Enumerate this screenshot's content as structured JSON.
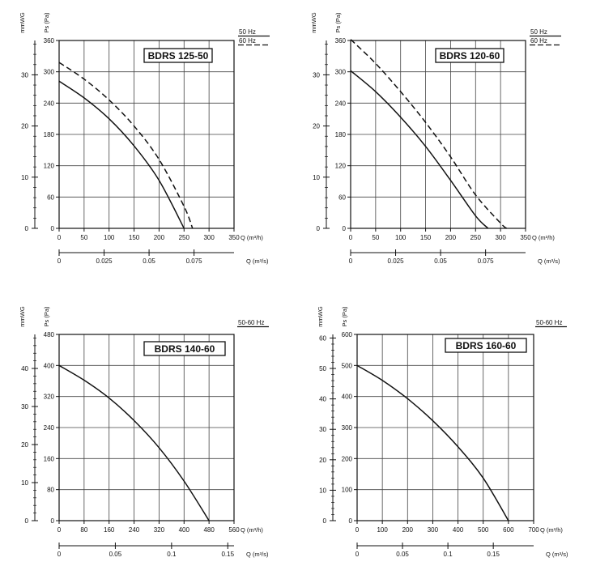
{
  "chart_data": [
    {
      "type": "line",
      "title": "BDRS 125-50",
      "xlabel": "Q (m³/h)",
      "x2label": "Q (m³/s)",
      "ylabel": "Ps (Pa)",
      "y2label": "mmWG",
      "xlim": [
        0,
        350
      ],
      "ylim": [
        0,
        360
      ],
      "x_ticks": [
        0,
        50,
        100,
        150,
        200,
        250,
        300,
        350
      ],
      "y_ticks": [
        0,
        60,
        120,
        180,
        240,
        300,
        360
      ],
      "x2_ticks": [
        0,
        0.025,
        0.05,
        0.075
      ],
      "x2_tick_labels": [
        "0",
        "0.025",
        "0.05",
        "0.075"
      ],
      "y2_ticks": [
        0,
        10,
        20,
        30
      ],
      "legend": [
        {
          "label": "50 Hz",
          "style": "solid"
        },
        {
          "label": "60 Hz",
          "style": "dashed"
        }
      ],
      "series": [
        {
          "name": "50 Hz",
          "style": "solid",
          "x": [
            0,
            50,
            100,
            150,
            200,
            250
          ],
          "y": [
            282,
            250,
            210,
            158,
            92,
            0
          ]
        },
        {
          "name": "60 Hz",
          "style": "dashed",
          "x": [
            0,
            50,
            100,
            150,
            200,
            250,
            267
          ],
          "y": [
            318,
            286,
            246,
            196,
            132,
            42,
            0
          ]
        }
      ]
    },
    {
      "type": "line",
      "title": "BDRS 120-60",
      "xlabel": "Q (m³/h)",
      "x2label": "Q (m³/s)",
      "ylabel": "Ps (Pa)",
      "y2label": "mmWG",
      "xlim": [
        0,
        350
      ],
      "ylim": [
        0,
        360
      ],
      "x_ticks": [
        0,
        50,
        100,
        150,
        200,
        250,
        300,
        350
      ],
      "y_ticks": [
        0,
        60,
        120,
        180,
        240,
        300,
        360
      ],
      "x2_ticks": [
        0,
        0.025,
        0.05,
        0.075
      ],
      "x2_tick_labels": [
        "0",
        "0.025",
        "0.05",
        "0.075"
      ],
      "y2_ticks": [
        0,
        10,
        20,
        30
      ],
      "legend": [
        {
          "label": "50 Hz",
          "style": "solid"
        },
        {
          "label": "60 Hz",
          "style": "dashed"
        }
      ],
      "series": [
        {
          "name": "50 Hz",
          "style": "solid",
          "x": [
            0,
            50,
            100,
            150,
            200,
            250,
            275
          ],
          "y": [
            302,
            262,
            213,
            157,
            92,
            24,
            0
          ]
        },
        {
          "name": "60 Hz",
          "style": "dashed",
          "x": [
            0,
            50,
            100,
            150,
            200,
            250,
            300,
            312
          ],
          "y": [
            362,
            316,
            262,
            203,
            137,
            64,
            10,
            0
          ]
        }
      ]
    },
    {
      "type": "line",
      "title": "BDRS 140-60",
      "xlabel": "Q (m³/h)",
      "x2label": "Q (m³/s)",
      "ylabel": "Ps (Pa)",
      "y2label": "mmWG",
      "xlim": [
        0,
        560
      ],
      "ylim": [
        0,
        480
      ],
      "x_ticks": [
        0,
        80,
        160,
        240,
        320,
        400,
        480,
        560
      ],
      "y_ticks": [
        0,
        80,
        160,
        240,
        320,
        400,
        480
      ],
      "x2_ticks": [
        0,
        0.05,
        0.1,
        0.15
      ],
      "x2_tick_labels": [
        "0",
        "0.05",
        "0.1",
        "0.15"
      ],
      "y2_ticks": [
        0,
        10,
        20,
        30,
        40
      ],
      "legend": [
        {
          "label": "50-60 Hz",
          "style": "solid"
        }
      ],
      "series": [
        {
          "name": "50-60 Hz",
          "style": "solid",
          "x": [
            0,
            80,
            160,
            240,
            320,
            400,
            480
          ],
          "y": [
            400,
            362,
            316,
            258,
            188,
            102,
            0
          ]
        }
      ]
    },
    {
      "type": "line",
      "title": "BDRS 160-60",
      "xlabel": "Q (m³/h)",
      "x2label": "Q (m³/s)",
      "ylabel": "Ps (Pa)",
      "y2label": "mmWG",
      "xlim": [
        0,
        700
      ],
      "ylim": [
        0,
        600
      ],
      "x_ticks": [
        0,
        100,
        200,
        300,
        400,
        500,
        600,
        700
      ],
      "y_ticks": [
        0,
        100,
        200,
        300,
        400,
        500,
        600
      ],
      "x2_ticks": [
        0,
        0.05,
        0.1,
        0.15
      ],
      "x2_tick_labels": [
        "0",
        "0.05",
        "0.1",
        "0.15"
      ],
      "y2_ticks": [
        0,
        10,
        20,
        30,
        40,
        50,
        60
      ],
      "legend": [
        {
          "label": "50-60 Hz",
          "style": "solid"
        }
      ],
      "series": [
        {
          "name": "50-60 Hz",
          "style": "solid",
          "x": [
            0,
            100,
            200,
            300,
            400,
            500,
            600
          ],
          "y": [
            500,
            452,
            393,
            322,
            238,
            137,
            0
          ]
        }
      ]
    }
  ]
}
